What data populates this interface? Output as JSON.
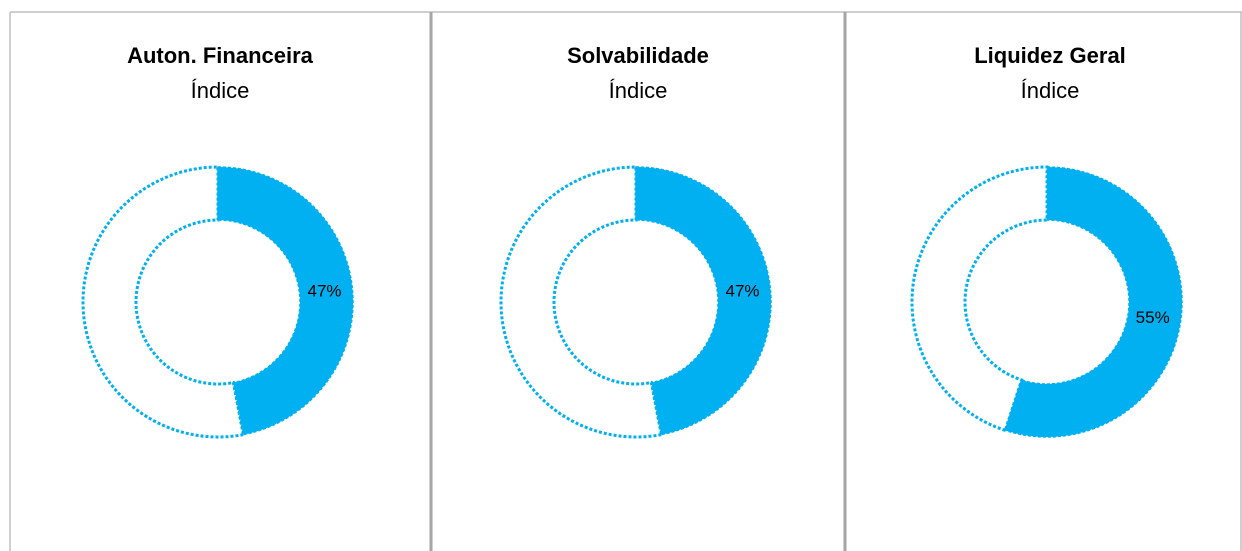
{
  "chart_data": [
    {
      "type": "donut",
      "title": "Auton. Financeira",
      "subtitle": "Índice",
      "values": [
        47,
        53
      ],
      "value_labels": [
        "47%",
        null
      ],
      "colors": [
        "#00b0f0",
        "none"
      ]
    },
    {
      "type": "donut",
      "title": "Solvabilidade",
      "subtitle": "Índice",
      "values": [
        47,
        53
      ],
      "value_labels": [
        "47%",
        null
      ],
      "colors": [
        "#00b0f0",
        "none"
      ]
    },
    {
      "type": "donut",
      "title": "Liquidez Geral",
      "subtitle": "Índice",
      "values": [
        55,
        45
      ],
      "value_labels": [
        "55%",
        null
      ],
      "colors": [
        "#00b0f0",
        "none"
      ]
    }
  ]
}
